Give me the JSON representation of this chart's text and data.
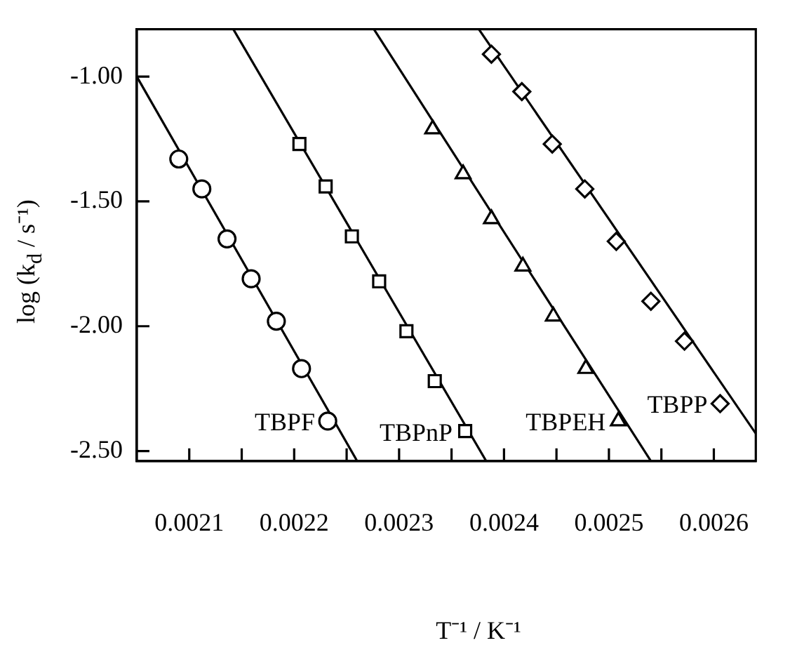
{
  "chart_data": {
    "type": "scatter",
    "xlabel": "T⁻¹ / K⁻¹",
    "ylabel": "log (k$_{d}$ / s⁻¹)",
    "xlim": [
      0.00205,
      0.00264
    ],
    "ylim": [
      -2.54,
      -0.81
    ],
    "xticks": [
      0.0021,
      {
        "value": 0.00215,
        "label": null
      },
      0.0022,
      {
        "value": 0.00225,
        "label": null
      },
      0.0023,
      {
        "value": 0.00235,
        "label": null
      },
      0.0024,
      {
        "value": 0.00245,
        "label": null
      },
      0.0025,
      {
        "value": 0.00255,
        "label": null
      },
      0.0026
    ],
    "yticks": [
      {
        "value": -1,
        "label": "-1.00"
      },
      {
        "value": -1.5,
        "label": "-1.50"
      },
      {
        "value": -2,
        "label": "-2.00"
      },
      {
        "value": -2.5,
        "label": "-2.50"
      }
    ],
    "grid": false,
    "legend": false,
    "series": [
      {
        "type": "scatter",
        "name": "TBPF",
        "marker": "circle",
        "color": "#000000",
        "x": [
          0.00209,
          0.002112,
          0.002136,
          0.002159,
          0.002183,
          0.002207,
          0.002232
        ],
        "values": [
          -1.33,
          -1.45,
          -1.65,
          -1.81,
          -1.98,
          -2.17,
          -2.38
        ]
      },
      {
        "type": "scatter",
        "name": "TBPnP",
        "marker": "square",
        "color": "#000000",
        "x": [
          0.002205,
          0.00223,
          0.002255,
          0.002281,
          0.002307,
          0.002334,
          0.002363
        ],
        "values": [
          -1.27,
          -1.44,
          -1.64,
          -1.82,
          -2.02,
          -2.22,
          -2.42
        ]
      },
      {
        "type": "scatter",
        "name": "TBPEH",
        "marker": "triangle",
        "color": "#000000",
        "x": [
          0.002332,
          0.002361,
          0.002388,
          0.002418,
          0.002447,
          0.002478,
          0.002509
        ],
        "values": [
          -1.21,
          -1.39,
          -1.57,
          -1.76,
          -1.96,
          -2.17,
          -2.38
        ]
      },
      {
        "type": "scatter",
        "name": "TBPP",
        "marker": "diamond",
        "color": "#000000",
        "x": [
          0.002388,
          0.002417,
          0.002446,
          0.002477,
          0.002507,
          0.00254,
          0.002572,
          0.002606
        ],
        "values": [
          -0.91,
          -1.06,
          -1.27,
          -1.45,
          -1.66,
          -1.9,
          -2.06,
          -2.31
        ]
      },
      {
        "type": "line",
        "marker": "none",
        "color": "#000000",
        "x": [
          0.00205,
          0.00226
        ],
        "values": [
          -1.0,
          -2.54
        ]
      },
      {
        "type": "line",
        "marker": "none",
        "color": "#000000",
        "x": [
          0.002142,
          0.002383
        ],
        "values": [
          -0.81,
          -2.54
        ]
      },
      {
        "type": "line",
        "marker": "none",
        "color": "#000000",
        "x": [
          0.002276,
          0.00254
        ],
        "values": [
          -0.81,
          -2.54
        ]
      },
      {
        "type": "line",
        "marker": "none",
        "color": "#000000",
        "x": [
          0.002376,
          0.00264
        ],
        "values": [
          -0.81,
          -2.43
        ]
      }
    ]
  }
}
